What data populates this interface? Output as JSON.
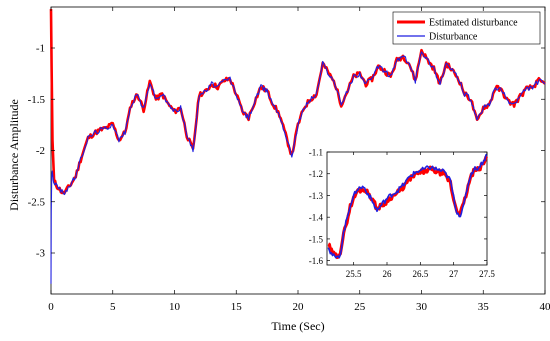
{
  "chart_data": [
    {
      "type": "line",
      "xlabel": "Time (Sec)",
      "ylabel": "Disturbance Amplitude",
      "xlim": [
        0,
        40
      ],
      "ylim": [
        -3.4,
        -0.6
      ],
      "xticks": [
        0,
        5,
        10,
        15,
        20,
        25,
        30,
        35,
        40
      ],
      "yticks": [
        -3,
        -2.5,
        -2,
        -1.5,
        -1
      ],
      "grid": false,
      "legend_position": "top-right",
      "series": [
        {
          "name": "Estimated disturbance",
          "color": "#ff0000",
          "x": [
            0,
            0.05,
            0.12,
            0.25,
            0.5,
            1,
            1.5,
            2,
            2.5,
            3,
            3.5,
            4,
            4.5,
            5,
            5.5,
            6,
            6.5,
            7,
            7.5,
            8,
            8.5,
            9,
            9.5,
            10,
            10.5,
            11,
            11.5,
            12,
            12.5,
            13,
            13.5,
            14,
            14.5,
            15,
            15.5,
            16,
            16.5,
            17,
            17.5,
            18,
            18.5,
            19,
            19.5,
            20,
            20.5,
            21,
            21.5,
            22,
            22.5,
            23,
            23.5,
            24,
            24.5,
            25,
            25.5,
            26,
            26.5,
            27,
            27.5,
            28,
            28.5,
            29,
            29.5,
            30,
            30.5,
            31,
            31.5,
            32,
            32.5,
            33,
            33.5,
            34,
            34.5,
            35,
            35.5,
            36,
            36.5,
            37,
            37.5,
            38,
            38.5,
            39,
            39.5,
            40
          ],
          "values": [
            -0.62,
            -1.2,
            -1.9,
            -2.3,
            -2.35,
            -2.42,
            -2.35,
            -2.25,
            -2.05,
            -1.88,
            -1.83,
            -1.8,
            -1.78,
            -1.74,
            -1.9,
            -1.82,
            -1.55,
            -1.45,
            -1.6,
            -1.33,
            -1.5,
            -1.45,
            -1.55,
            -1.62,
            -1.58,
            -1.85,
            -2.0,
            -1.45,
            -1.43,
            -1.35,
            -1.38,
            -1.32,
            -1.3,
            -1.45,
            -1.62,
            -1.68,
            -1.52,
            -1.38,
            -1.42,
            -1.55,
            -1.65,
            -1.85,
            -2.05,
            -1.75,
            -1.58,
            -1.5,
            -1.45,
            -1.15,
            -1.25,
            -1.35,
            -1.55,
            -1.42,
            -1.28,
            -1.25,
            -1.35,
            -1.3,
            -1.18,
            -1.22,
            -1.28,
            -1.12,
            -1.08,
            -1.15,
            -1.32,
            -1.02,
            -1.12,
            -1.2,
            -1.35,
            -1.15,
            -1.22,
            -1.3,
            -1.45,
            -1.5,
            -1.72,
            -1.58,
            -1.55,
            -1.38,
            -1.42,
            -1.52,
            -1.55,
            -1.47,
            -1.4,
            -1.38,
            -1.32,
            -1.35
          ]
        },
        {
          "name": "Disturbance",
          "color": "#1f1fe0",
          "x": [
            0,
            0.02,
            0.06,
            0.1,
            0.2,
            0.5,
            1,
            1.5,
            2,
            2.5,
            3,
            3.5,
            4,
            4.5,
            5,
            5.5,
            6,
            6.5,
            7,
            7.5,
            8,
            8.5,
            9,
            9.5,
            10,
            10.5,
            11,
            11.5,
            12,
            12.5,
            13,
            13.5,
            14,
            14.5,
            15,
            15.5,
            16,
            16.5,
            17,
            17.5,
            18,
            18.5,
            19,
            19.5,
            20,
            20.5,
            21,
            21.5,
            22,
            22.5,
            23,
            23.5,
            24,
            24.5,
            25,
            25.5,
            26,
            26.5,
            27,
            27.5,
            28,
            28.5,
            29,
            29.5,
            30,
            30.5,
            31,
            31.5,
            32,
            32.5,
            33,
            33.5,
            34,
            34.5,
            35,
            35.5,
            36,
            36.5,
            37,
            37.5,
            38,
            38.5,
            39,
            39.5,
            40
          ],
          "values": [
            -3.3,
            -2.6,
            -2.25,
            -2.2,
            -2.3,
            -2.35,
            -2.42,
            -2.35,
            -2.25,
            -2.05,
            -1.88,
            -1.83,
            -1.8,
            -1.78,
            -1.74,
            -1.9,
            -1.82,
            -1.55,
            -1.45,
            -1.6,
            -1.33,
            -1.5,
            -1.45,
            -1.55,
            -1.62,
            -1.58,
            -1.85,
            -2.0,
            -1.45,
            -1.43,
            -1.35,
            -1.38,
            -1.32,
            -1.3,
            -1.45,
            -1.62,
            -1.68,
            -1.52,
            -1.38,
            -1.42,
            -1.55,
            -1.65,
            -1.85,
            -2.05,
            -1.75,
            -1.58,
            -1.5,
            -1.45,
            -1.15,
            -1.25,
            -1.35,
            -1.55,
            -1.42,
            -1.28,
            -1.25,
            -1.35,
            -1.3,
            -1.18,
            -1.22,
            -1.28,
            -1.12,
            -1.08,
            -1.15,
            -1.32,
            -1.02,
            -1.12,
            -1.2,
            -1.35,
            -1.15,
            -1.22,
            -1.3,
            -1.45,
            -1.5,
            -1.72,
            -1.58,
            -1.55,
            -1.38,
            -1.42,
            -1.52,
            -1.55,
            -1.47,
            -1.4,
            -1.38,
            -1.32,
            -1.35
          ]
        }
      ]
    },
    {
      "type": "line",
      "xlim": [
        25.1,
        27.5
      ],
      "ylim": [
        -1.62,
        -1.1
      ],
      "xticks": [
        25.5,
        26,
        26.5,
        27,
        27.5
      ],
      "yticks": [
        -1.6,
        -1.5,
        -1.4,
        -1.3,
        -1.2,
        -1.1
      ],
      "grid": false,
      "series": [
        {
          "name": "Estimated disturbance",
          "color": "#ff0000",
          "x": [
            25.12,
            25.15,
            25.2,
            25.25,
            25.3,
            25.35,
            25.45,
            25.55,
            25.65,
            25.75,
            25.85,
            25.95,
            26.05,
            26.15,
            26.25,
            26.35,
            26.45,
            26.55,
            26.65,
            26.75,
            26.85,
            26.95,
            27.0,
            27.05,
            27.1,
            27.15,
            27.2,
            27.25,
            27.3,
            27.38,
            27.45,
            27.5
          ],
          "values": [
            -1.52,
            -1.55,
            -1.57,
            -1.58,
            -1.56,
            -1.48,
            -1.35,
            -1.28,
            -1.27,
            -1.3,
            -1.36,
            -1.34,
            -1.31,
            -1.29,
            -1.26,
            -1.22,
            -1.2,
            -1.19,
            -1.18,
            -1.19,
            -1.2,
            -1.24,
            -1.32,
            -1.37,
            -1.38,
            -1.34,
            -1.28,
            -1.22,
            -1.19,
            -1.18,
            -1.15,
            -1.12
          ]
        },
        {
          "name": "Disturbance",
          "color": "#1f1fe0",
          "x": [
            25.12,
            25.15,
            25.2,
            25.25,
            25.3,
            25.35,
            25.45,
            25.55,
            25.65,
            25.75,
            25.85,
            25.95,
            26.05,
            26.15,
            26.25,
            26.35,
            26.45,
            26.55,
            26.65,
            26.75,
            26.85,
            26.95,
            27.0,
            27.05,
            27.1,
            27.15,
            27.2,
            27.25,
            27.3,
            27.38,
            27.45,
            27.5
          ],
          "values": [
            -1.53,
            -1.56,
            -1.58,
            -1.59,
            -1.57,
            -1.47,
            -1.34,
            -1.27,
            -1.26,
            -1.31,
            -1.37,
            -1.33,
            -1.3,
            -1.28,
            -1.25,
            -1.21,
            -1.19,
            -1.18,
            -1.17,
            -1.18,
            -1.19,
            -1.23,
            -1.31,
            -1.38,
            -1.39,
            -1.35,
            -1.27,
            -1.21,
            -1.18,
            -1.17,
            -1.14,
            -1.11
          ]
        }
      ]
    }
  ]
}
